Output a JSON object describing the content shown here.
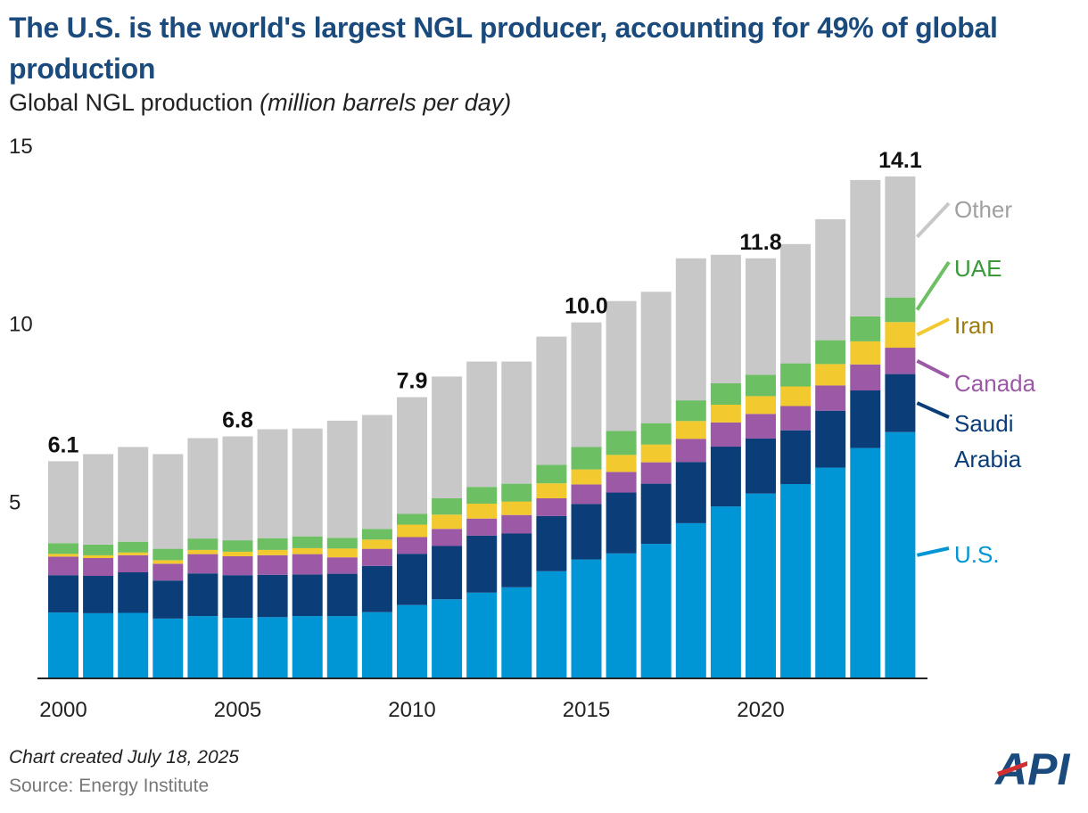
{
  "header": {
    "title": "The U.S. is the world's largest NGL producer, accounting for 49% of global production",
    "subtitle_main": "Global NGL production ",
    "subtitle_unit": "(million barrels per day)"
  },
  "footer": {
    "note": "Chart created July 18, 2025",
    "source": "Source: Energy Institute",
    "logo_text": "API"
  },
  "colors": {
    "us": "#0096d6",
    "saudi": "#0b3d78",
    "canada": "#9b59a6",
    "iran": "#f2ca30",
    "uae": "#6cbf63",
    "other": "#c8c8c8"
  },
  "chart_data": {
    "type": "bar",
    "stacked": true,
    "title": "The U.S. is the world's largest NGL producer, accounting for 49% of global production",
    "ylabel": "Global NGL production (million barrels per day)",
    "ylim": [
      0,
      15
    ],
    "yticks": [
      5,
      10,
      15
    ],
    "xticks": [
      2000,
      2005,
      2010,
      2015,
      2020
    ],
    "categories": [
      2000,
      2001,
      2002,
      2003,
      2004,
      2005,
      2006,
      2007,
      2008,
      2009,
      2010,
      2011,
      2012,
      2013,
      2014,
      2015,
      2016,
      2017,
      2018,
      2019,
      2020,
      2021,
      2022,
      2023,
      2024
    ],
    "series": [
      {
        "name": "U.S.",
        "key": "us",
        "legend": "U.S.",
        "values": [
          1.85,
          1.83,
          1.84,
          1.68,
          1.75,
          1.7,
          1.72,
          1.75,
          1.75,
          1.86,
          2.06,
          2.22,
          2.41,
          2.56,
          3.01,
          3.34,
          3.51,
          3.78,
          4.36,
          4.83,
          5.19,
          5.46,
          5.92,
          6.47,
          6.92
        ]
      },
      {
        "name": "Saudi Arabia",
        "key": "saudi",
        "legend": "Saudi Arabia",
        "values": [
          1.05,
          1.05,
          1.14,
          1.07,
          1.2,
          1.2,
          1.19,
          1.17,
          1.19,
          1.3,
          1.44,
          1.5,
          1.6,
          1.51,
          1.55,
          1.56,
          1.71,
          1.69,
          1.72,
          1.68,
          1.55,
          1.51,
          1.6,
          1.62,
          1.63
        ]
      },
      {
        "name": "Canada",
        "key": "canada",
        "legend": "Canada",
        "values": [
          0.52,
          0.5,
          0.48,
          0.47,
          0.54,
          0.53,
          0.55,
          0.57,
          0.46,
          0.48,
          0.47,
          0.48,
          0.48,
          0.52,
          0.5,
          0.55,
          0.58,
          0.6,
          0.65,
          0.68,
          0.69,
          0.68,
          0.71,
          0.73,
          0.74
        ]
      },
      {
        "name": "Iran",
        "key": "iran",
        "legend": "Iran",
        "values": [
          0.08,
          0.08,
          0.08,
          0.1,
          0.12,
          0.13,
          0.15,
          0.17,
          0.25,
          0.26,
          0.35,
          0.4,
          0.42,
          0.38,
          0.42,
          0.42,
          0.48,
          0.5,
          0.5,
          0.5,
          0.5,
          0.55,
          0.6,
          0.65,
          0.72
        ]
      },
      {
        "name": "UAE",
        "key": "uae",
        "legend": "UAE",
        "values": [
          0.3,
          0.3,
          0.3,
          0.32,
          0.32,
          0.32,
          0.33,
          0.33,
          0.3,
          0.3,
          0.3,
          0.46,
          0.47,
          0.5,
          0.52,
          0.63,
          0.67,
          0.6,
          0.58,
          0.6,
          0.6,
          0.65,
          0.67,
          0.7,
          0.69
        ]
      },
      {
        "name": "Other",
        "key": "other",
        "legend": "Other",
        "values": [
          2.3,
          2.54,
          2.66,
          2.66,
          2.82,
          2.92,
          3.06,
          3.03,
          3.29,
          3.2,
          3.28,
          3.42,
          3.52,
          3.43,
          3.6,
          3.5,
          3.65,
          3.69,
          3.99,
          3.61,
          3.27,
          3.35,
          3.4,
          3.83,
          3.4
        ]
      }
    ],
    "data_labels": [
      {
        "year": 2000,
        "label": "6.1"
      },
      {
        "year": 2005,
        "label": "6.8"
      },
      {
        "year": 2010,
        "label": "7.9"
      },
      {
        "year": 2015,
        "label": "10.0"
      },
      {
        "year": 2020,
        "label": "11.8"
      },
      {
        "year": 2024,
        "label": "14.1"
      }
    ],
    "legend_placement": "right"
  }
}
